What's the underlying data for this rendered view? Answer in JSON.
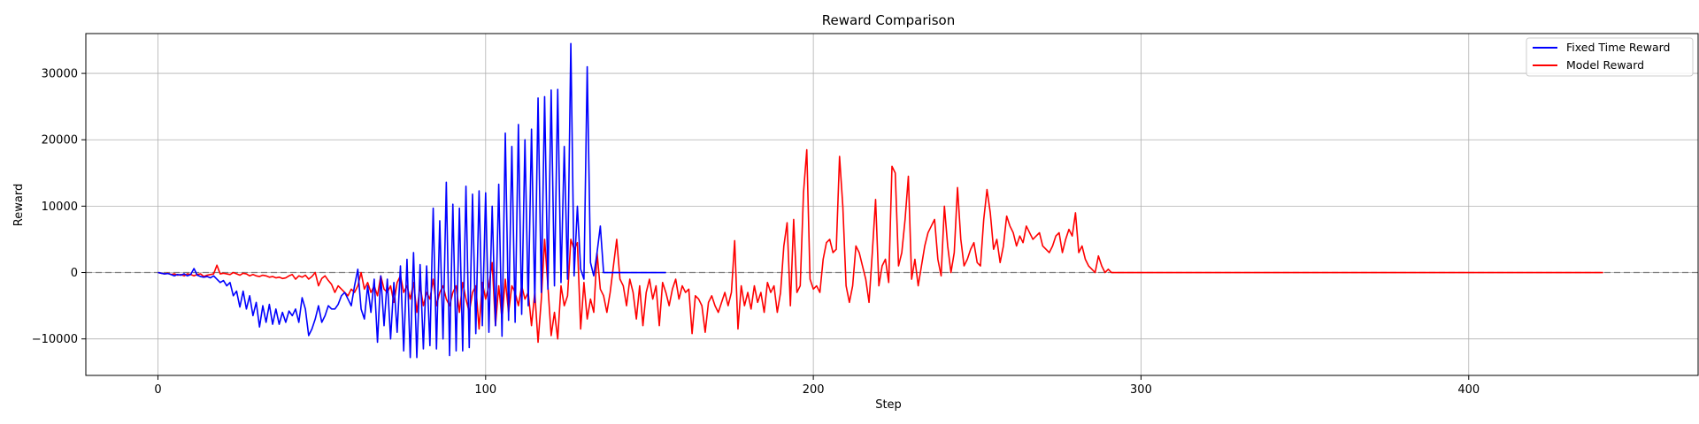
{
  "chart_data": {
    "type": "line",
    "title": "Reward Comparison",
    "xlabel": "Step",
    "ylabel": "Reward",
    "xlim": [
      -22,
      470
    ],
    "ylim": [
      -15500,
      36000
    ],
    "xticks": [
      0,
      100,
      200,
      300,
      400
    ],
    "yticks": [
      -10000,
      0,
      10000,
      20000,
      30000
    ],
    "grid": true,
    "legend_position": "top-right",
    "reference_line": {
      "y": 0,
      "style": "dashed",
      "color": "#808080"
    },
    "series": [
      {
        "name": "Fixed Time Reward",
        "color": "#0000ff",
        "x_start": 0,
        "values": [
          0,
          -100,
          -200,
          -150,
          -300,
          -500,
          -300,
          -400,
          -200,
          -500,
          -300,
          600,
          -400,
          -600,
          -700,
          -600,
          -800,
          -500,
          -1000,
          -1500,
          -1200,
          -2000,
          -1500,
          -3500,
          -2800,
          -5200,
          -2800,
          -5500,
          -3500,
          -6500,
          -4500,
          -8200,
          -5000,
          -7500,
          -4800,
          -7800,
          -5500,
          -7800,
          -6000,
          -7500,
          -5800,
          -6500,
          -5500,
          -7500,
          -3800,
          -5500,
          -9500,
          -8500,
          -7000,
          -5000,
          -7500,
          -6500,
          -5000,
          -5500,
          -5500,
          -4800,
          -3500,
          -3000,
          -4000,
          -5000,
          -2000,
          500,
          -5500,
          -7000,
          -2000,
          -6000,
          -1000,
          -10500,
          -500,
          -8000,
          -1000,
          -10000,
          -1500,
          -9000,
          1000,
          -11800,
          2000,
          -12800,
          3000,
          -12800,
          1200,
          -11500,
          1000,
          -11000,
          9700,
          -11500,
          7800,
          -10000,
          13600,
          -12500,
          10300,
          -11800,
          9700,
          -11800,
          13000,
          -11300,
          11800,
          -9200,
          12300,
          -8000,
          12000,
          -9000,
          10000,
          -8000,
          13300,
          -9600,
          21000,
          -7200,
          19000,
          -7500,
          22300,
          -6300,
          20000,
          -5000,
          21600,
          -4500,
          26300,
          -3000,
          26500,
          -2500,
          27500,
          -2000,
          27600,
          -1500,
          19000,
          -1000,
          34500,
          -500,
          10000,
          500,
          -1000,
          31000,
          1500,
          -500,
          3000,
          7000,
          0,
          0,
          0,
          0,
          0,
          0,
          0,
          0,
          0,
          0,
          0,
          0,
          0,
          0,
          0,
          0,
          0,
          0,
          0,
          0
        ]
      },
      {
        "name": "Model Reward",
        "color": "#ff0000",
        "x_start": 0,
        "values": [
          0,
          -100,
          -200,
          -100,
          -300,
          -200,
          -400,
          -300,
          -500,
          -200,
          -300,
          -500,
          -300,
          -200,
          -600,
          -400,
          -300,
          -200,
          1100,
          -200,
          -100,
          -200,
          -300,
          0,
          -200,
          -400,
          -100,
          -200,
          -500,
          -300,
          -500,
          -600,
          -400,
          -500,
          -700,
          -600,
          -800,
          -700,
          -900,
          -800,
          -500,
          -300,
          -1000,
          -500,
          -700,
          -400,
          -1000,
          -600,
          0,
          -2000,
          -900,
          -500,
          -1200,
          -1800,
          -3000,
          -2000,
          -2500,
          -3000,
          -3500,
          -2500,
          -3000,
          -2000,
          0,
          -2500,
          -1500,
          -3000,
          -2000,
          -3500,
          -500,
          -2500,
          -3000,
          -2000,
          -4500,
          -1500,
          -500,
          -3000,
          -2000,
          -4000,
          -1500,
          -6000,
          -2000,
          -5000,
          -3000,
          -4000,
          -1000,
          -5000,
          -3000,
          -2000,
          -4000,
          -5000,
          -3000,
          -2000,
          -6000,
          -1500,
          -4000,
          -6000,
          -3000,
          -2000,
          -8500,
          -1500,
          -4000,
          -2000,
          1500,
          -8000,
          -2000,
          -7000,
          -1000,
          -6000,
          -2000,
          -3000,
          -5000,
          -2000,
          -4000,
          -3000,
          -8000,
          -3000,
          -10500,
          -4000,
          5000,
          -2000,
          -9500,
          -6000,
          -10000,
          -2000,
          -5000,
          -3500,
          5000,
          3500,
          4500,
          -8500,
          -1500,
          -7000,
          -4000,
          -6000,
          3000,
          -2500,
          -3500,
          -6000,
          -3000,
          1000,
          5000,
          -1000,
          -2000,
          -5000,
          -1000,
          -3000,
          -7000,
          -2000,
          -8000,
          -3000,
          -1000,
          -4000,
          -2000,
          -8000,
          -1500,
          -3000,
          -5000,
          -2500,
          -1000,
          -4000,
          -2000,
          -3000,
          -2500,
          -9200,
          -3500,
          -4000,
          -5000,
          -9000,
          -4500,
          -3500,
          -5000,
          -6000,
          -4500,
          -3000,
          -5000,
          -3000,
          4800,
          -8500,
          -2000,
          -5000,
          -3000,
          -5500,
          -2000,
          -4500,
          -3000,
          -6000,
          -1500,
          -3000,
          -2000,
          -6000,
          -3000,
          4000,
          7500,
          -5000,
          8000,
          -3000,
          -2000,
          12000,
          18500,
          -1000,
          -2500,
          -2000,
          -3000,
          2000,
          4500,
          5000,
          3000,
          3500,
          17500,
          10000,
          -2000,
          -4500,
          -2000,
          4000,
          3000,
          1000,
          -1000,
          -4500,
          3000,
          11000,
          -2000,
          1000,
          2000,
          -1500,
          16000,
          15000,
          1000,
          3000,
          8000,
          14500,
          -1000,
          2000,
          -2000,
          1000,
          4000,
          6000,
          7000,
          8000,
          2000,
          -500,
          10000,
          4000,
          0,
          3000,
          12800,
          5000,
          1000,
          2000,
          3500,
          4500,
          1500,
          1000,
          8000,
          12500,
          9000,
          3500,
          5000,
          1500,
          4000,
          8500,
          7000,
          6000,
          4000,
          5500,
          4500,
          7000,
          6000,
          5000,
          5500,
          6000,
          4000,
          3500,
          3000,
          4000,
          5500,
          6000,
          3000,
          5000,
          6500,
          5500,
          9000,
          3000,
          4000,
          2000,
          1000,
          500,
          0,
          2500,
          1000,
          0,
          500,
          0,
          0,
          0,
          0,
          0,
          0,
          0,
          0,
          0,
          0,
          0,
          0,
          0,
          0,
          0,
          0,
          0,
          0,
          0,
          0,
          0,
          0,
          0,
          0,
          0,
          0,
          0,
          0,
          0,
          0,
          0,
          0,
          0,
          0,
          0,
          0,
          0,
          0,
          0,
          0,
          0,
          0,
          0,
          0,
          0,
          0,
          0,
          0,
          0,
          0,
          0,
          0,
          0,
          0,
          0,
          0,
          0,
          0,
          0,
          0,
          0,
          0,
          0,
          0,
          0,
          0,
          0,
          0,
          0,
          0,
          0,
          0,
          0,
          0,
          0,
          0,
          0,
          0,
          0,
          0,
          0,
          0,
          0,
          0,
          0,
          0,
          0,
          0,
          0,
          0,
          0,
          0,
          0,
          0,
          0,
          0,
          0,
          0,
          0,
          0,
          0,
          0,
          0,
          0,
          0,
          0,
          0,
          0,
          0,
          0,
          0,
          0,
          0,
          0,
          0,
          0,
          0,
          0,
          0,
          0,
          0,
          0,
          0,
          0,
          0,
          0,
          0,
          0,
          0,
          0,
          0,
          0,
          0,
          0,
          0,
          0,
          0,
          0,
          0,
          0,
          0,
          0,
          0,
          0,
          0,
          0,
          0,
          0,
          0,
          0,
          0
        ]
      }
    ]
  }
}
